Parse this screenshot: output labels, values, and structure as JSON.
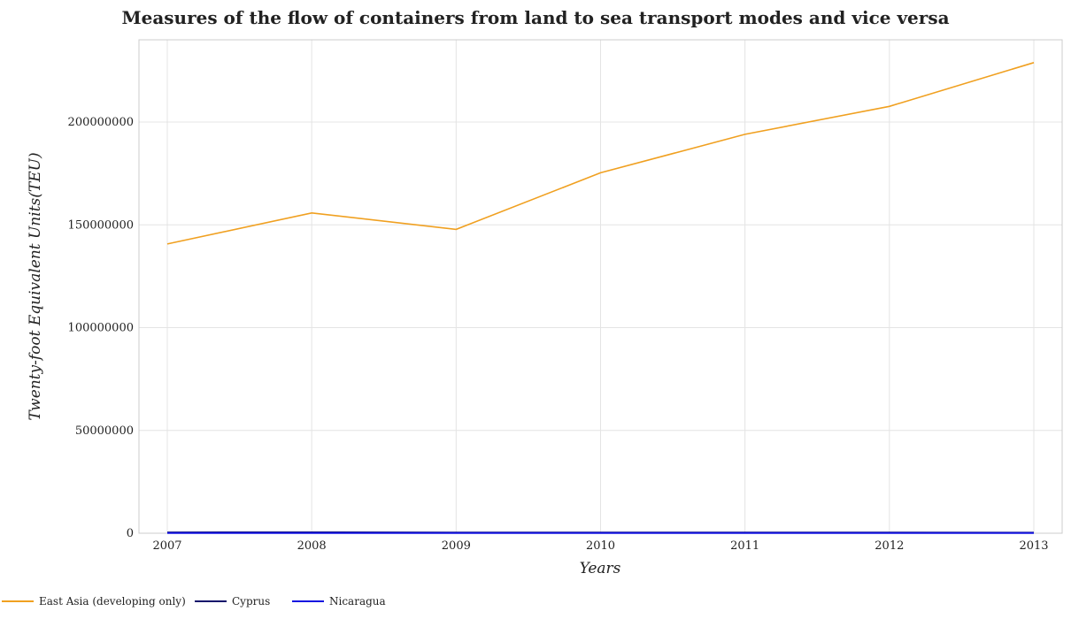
{
  "chart_data": {
    "type": "line",
    "title": "Measures of the flow of containers from land to sea transport modes and vice versa",
    "xlabel": "Years",
    "ylabel": "Twenty-foot Equivalent Units(TEU)",
    "categories": [
      "2007",
      "2008",
      "2009",
      "2010",
      "2011",
      "2012",
      "2013"
    ],
    "ylim": [
      0,
      240000000
    ],
    "yticks": [
      0,
      50000000,
      100000000,
      150000000,
      200000000
    ],
    "ytick_labels": [
      "0",
      "50000000",
      "100000000",
      "150000000",
      "200000000"
    ],
    "grid": true,
    "legend_position": "bottom-left",
    "series": [
      {
        "name": "East Asia (developing only)",
        "color": "#f0a020",
        "values": [
          140700000,
          155800000,
          147800000,
          175300000,
          194000000,
          207600000,
          228900000
        ]
      },
      {
        "name": "Cyprus",
        "color": "#10106b",
        "values": [
          380000,
          410000,
          345000,
          350000,
          360000,
          300000,
          245000
        ]
      },
      {
        "name": "Nicaragua",
        "color": "#1414e0",
        "values": [
          88000,
          92000,
          78000,
          85000,
          92000,
          95000,
          98000
        ]
      }
    ]
  }
}
